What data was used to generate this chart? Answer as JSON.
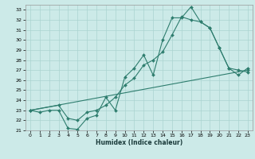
{
  "title": "",
  "xlabel": "Humidex (Indice chaleur)",
  "ylabel": "",
  "xlim": [
    -0.5,
    23.5
  ],
  "ylim": [
    21,
    33.5
  ],
  "yticks": [
    21,
    22,
    23,
    24,
    25,
    26,
    27,
    28,
    29,
    30,
    31,
    32,
    33
  ],
  "xticks": [
    0,
    1,
    2,
    3,
    4,
    5,
    6,
    7,
    8,
    9,
    10,
    11,
    12,
    13,
    14,
    15,
    16,
    17,
    18,
    19,
    20,
    21,
    22,
    23
  ],
  "bg_color": "#cceae8",
  "line_color": "#2e7d6e",
  "grid_color": "#aad4d0",
  "line1_x": [
    0,
    1,
    2,
    3,
    4,
    5,
    6,
    7,
    8,
    9,
    10,
    11,
    12,
    13,
    14,
    15,
    16,
    17,
    18,
    19,
    20,
    21,
    22,
    23
  ],
  "line1_y": [
    23.0,
    22.8,
    23.0,
    23.0,
    21.2,
    21.1,
    22.2,
    22.5,
    24.3,
    23.0,
    26.3,
    27.2,
    28.5,
    26.5,
    30.0,
    32.2,
    32.2,
    33.3,
    31.8,
    31.2,
    29.2,
    27.2,
    27.0,
    26.8
  ],
  "line2_x": [
    0,
    3,
    4,
    5,
    6,
    7,
    8,
    9,
    10,
    11,
    12,
    13,
    14,
    15,
    16,
    17,
    18,
    19,
    20,
    21,
    22,
    23
  ],
  "line2_y": [
    23.0,
    23.5,
    22.2,
    22.0,
    22.8,
    23.0,
    23.5,
    24.3,
    25.5,
    26.2,
    27.5,
    28.0,
    28.8,
    30.5,
    32.3,
    32.0,
    31.8,
    31.2,
    29.2,
    27.2,
    26.5,
    27.2
  ],
  "line3_x": [
    0,
    23
  ],
  "line3_y": [
    23.0,
    27.0
  ]
}
